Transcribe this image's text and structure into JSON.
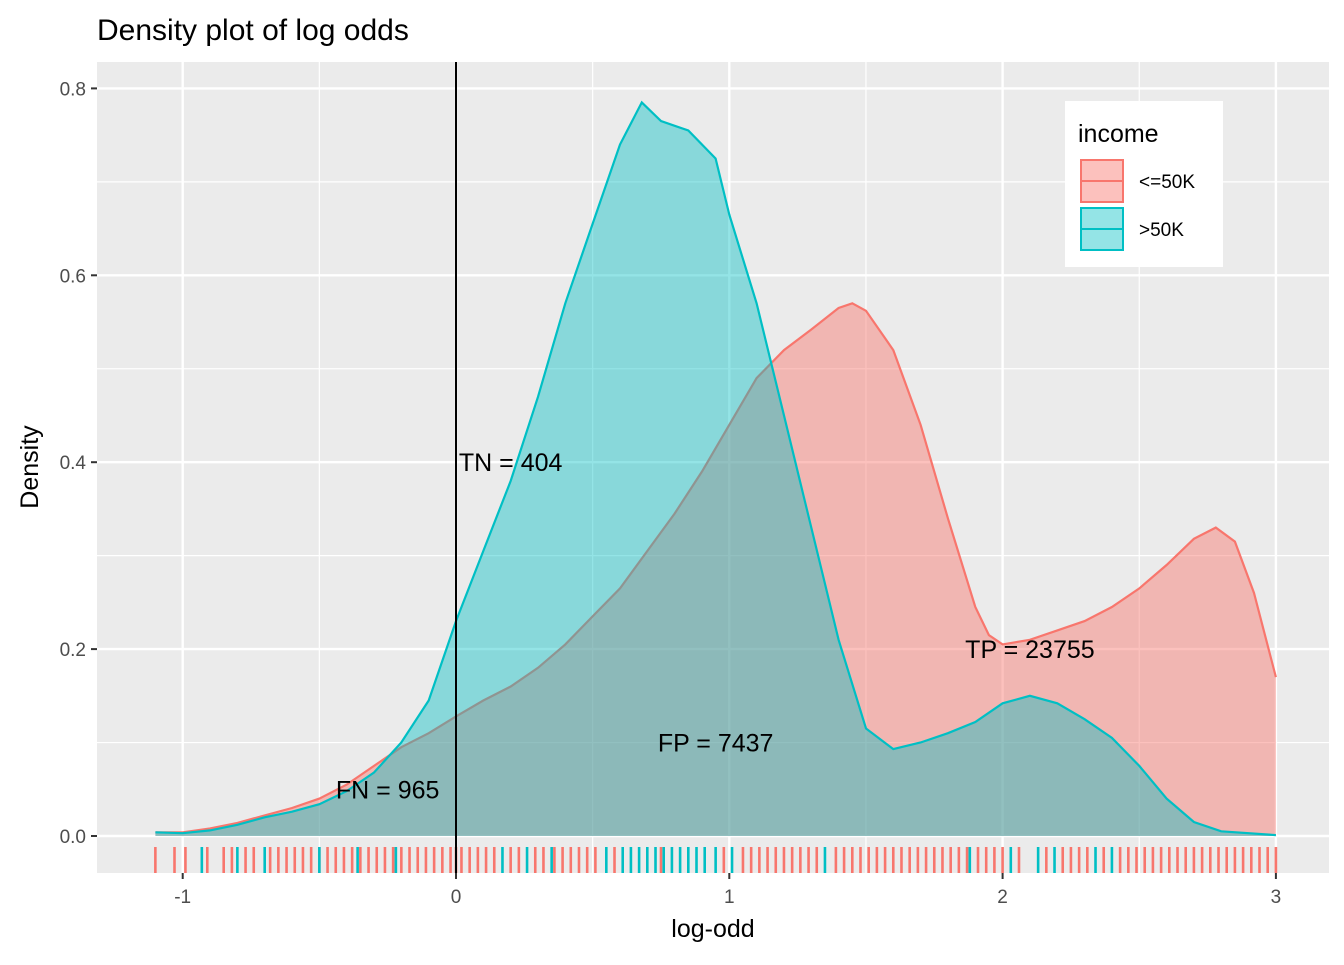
{
  "chart_data": {
    "type": "area",
    "title": "Density plot of log odds",
    "xlabel": "log-odd",
    "ylabel": "Density",
    "xlim": [
      -1.3,
      3.05
    ],
    "ylim": [
      -0.04,
      0.82
    ],
    "x_ticks": [
      -1,
      0,
      1,
      2,
      3
    ],
    "x_tick_labels": [
      "-1",
      "0",
      "1",
      "2",
      "3"
    ],
    "y_ticks": [
      0.0,
      0.2,
      0.4,
      0.6,
      0.8
    ],
    "y_tick_labels": [
      "0.0",
      "0.2",
      "0.4",
      "0.6",
      "0.8"
    ],
    "grid": true,
    "legend": {
      "title": "income",
      "position": "top-right"
    },
    "vline_x": 0,
    "series": [
      {
        "name": "<=50K",
        "color": "#F8766D",
        "fill": "rgba(248,118,109,0.45)",
        "points": [
          [
            -1.1,
            0.004
          ],
          [
            -1.0,
            0.004
          ],
          [
            -0.9,
            0.008
          ],
          [
            -0.8,
            0.014
          ],
          [
            -0.7,
            0.022
          ],
          [
            -0.6,
            0.03
          ],
          [
            -0.5,
            0.04
          ],
          [
            -0.4,
            0.055
          ],
          [
            -0.3,
            0.075
          ],
          [
            -0.2,
            0.095
          ],
          [
            -0.1,
            0.11
          ],
          [
            0.0,
            0.128
          ],
          [
            0.1,
            0.145
          ],
          [
            0.2,
            0.16
          ],
          [
            0.3,
            0.18
          ],
          [
            0.4,
            0.205
          ],
          [
            0.5,
            0.235
          ],
          [
            0.6,
            0.265
          ],
          [
            0.7,
            0.305
          ],
          [
            0.8,
            0.345
          ],
          [
            0.9,
            0.39
          ],
          [
            1.0,
            0.44
          ],
          [
            1.1,
            0.49
          ],
          [
            1.2,
            0.52
          ],
          [
            1.3,
            0.542
          ],
          [
            1.4,
            0.565
          ],
          [
            1.45,
            0.57
          ],
          [
            1.5,
            0.562
          ],
          [
            1.6,
            0.52
          ],
          [
            1.7,
            0.44
          ],
          [
            1.8,
            0.34
          ],
          [
            1.9,
            0.245
          ],
          [
            1.95,
            0.215
          ],
          [
            2.0,
            0.205
          ],
          [
            2.1,
            0.21
          ],
          [
            2.2,
            0.22
          ],
          [
            2.3,
            0.23
          ],
          [
            2.4,
            0.245
          ],
          [
            2.5,
            0.265
          ],
          [
            2.6,
            0.29
          ],
          [
            2.7,
            0.318
          ],
          [
            2.78,
            0.33
          ],
          [
            2.85,
            0.315
          ],
          [
            2.92,
            0.26
          ],
          [
            3.0,
            0.17
          ]
        ]
      },
      {
        "name": ">50K",
        "color": "#00BFC4",
        "fill": "rgba(0,191,196,0.42)",
        "points": [
          [
            -1.1,
            0.004
          ],
          [
            -1.0,
            0.003
          ],
          [
            -0.9,
            0.006
          ],
          [
            -0.8,
            0.012
          ],
          [
            -0.7,
            0.02
          ],
          [
            -0.6,
            0.026
          ],
          [
            -0.5,
            0.034
          ],
          [
            -0.4,
            0.048
          ],
          [
            -0.3,
            0.068
          ],
          [
            -0.2,
            0.1
          ],
          [
            -0.1,
            0.145
          ],
          [
            0.0,
            0.23
          ],
          [
            0.1,
            0.305
          ],
          [
            0.2,
            0.38
          ],
          [
            0.3,
            0.47
          ],
          [
            0.4,
            0.57
          ],
          [
            0.5,
            0.655
          ],
          [
            0.6,
            0.74
          ],
          [
            0.68,
            0.785
          ],
          [
            0.75,
            0.765
          ],
          [
            0.85,
            0.755
          ],
          [
            0.95,
            0.725
          ],
          [
            1.0,
            0.665
          ],
          [
            1.1,
            0.57
          ],
          [
            1.2,
            0.45
          ],
          [
            1.3,
            0.33
          ],
          [
            1.4,
            0.21
          ],
          [
            1.5,
            0.115
          ],
          [
            1.6,
            0.093
          ],
          [
            1.7,
            0.1
          ],
          [
            1.8,
            0.11
          ],
          [
            1.9,
            0.122
          ],
          [
            2.0,
            0.142
          ],
          [
            2.1,
            0.15
          ],
          [
            2.2,
            0.142
          ],
          [
            2.3,
            0.125
          ],
          [
            2.4,
            0.105
          ],
          [
            2.5,
            0.075
          ],
          [
            2.6,
            0.04
          ],
          [
            2.7,
            0.015
          ],
          [
            2.8,
            0.005
          ],
          [
            3.0,
            0.001
          ]
        ]
      }
    ],
    "annotations": [
      {
        "label": "TN = 404",
        "x": 0.2,
        "y": 0.4
      },
      {
        "label": "TP = 23755",
        "x": 2.1,
        "y": 0.2
      },
      {
        "label": "FP = 7437",
        "x": 0.95,
        "y": 0.1
      },
      {
        "label": "FN = 965",
        "x": -0.25,
        "y": 0.05
      }
    ],
    "rug": {
      "<=50K": [
        -1.1,
        -1.03,
        -0.99,
        -0.91,
        -0.85,
        -0.82,
        -0.77,
        -0.74,
        -0.68,
        -0.65,
        -0.62,
        -0.59,
        -0.56,
        -0.53,
        -0.5,
        -0.47,
        -0.44,
        -0.41,
        -0.38,
        -0.35,
        -0.32,
        -0.29,
        -0.26,
        -0.23,
        -0.2,
        -0.17,
        -0.14,
        -0.11,
        -0.08,
        -0.05,
        -0.02,
        0.0,
        0.02,
        0.05,
        0.08,
        0.11,
        0.14,
        0.2,
        0.23,
        0.29,
        0.32,
        0.36,
        0.39,
        0.42,
        0.45,
        0.48,
        0.51,
        0.58,
        0.75,
        0.98,
        1.05,
        1.08,
        1.11,
        1.14,
        1.17,
        1.2,
        1.23,
        1.26,
        1.29,
        1.32,
        1.39,
        1.42,
        1.45,
        1.48,
        1.51,
        1.54,
        1.57,
        1.6,
        1.63,
        1.66,
        1.69,
        1.72,
        1.75,
        1.78,
        1.81,
        1.84,
        1.87,
        1.91,
        1.94,
        1.97,
        2.0,
        2.06,
        2.16,
        2.22,
        2.25,
        2.28,
        2.31,
        2.37,
        2.43,
        2.46,
        2.49,
        2.52,
        2.55,
        2.58,
        2.61,
        2.64,
        2.67,
        2.7,
        2.73,
        2.76,
        2.79,
        2.82,
        2.85,
        2.88,
        2.91,
        2.94,
        2.97,
        3.0
      ],
      ">50K": [
        -0.93,
        -0.8,
        -0.7,
        -0.5,
        -0.36,
        -0.22,
        0.17,
        0.26,
        0.35,
        0.55,
        0.61,
        0.64,
        0.67,
        0.7,
        0.73,
        0.76,
        0.79,
        0.82,
        0.85,
        0.88,
        0.91,
        0.95,
        1.01,
        1.35,
        1.88,
        2.03,
        2.13,
        2.19,
        2.34,
        2.4
      ]
    }
  }
}
